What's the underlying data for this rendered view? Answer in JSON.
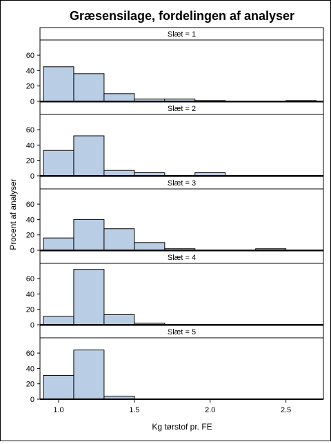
{
  "chart_data": {
    "type": "bar",
    "title": "Græsensilage, fordelingen af analyser",
    "xlabel": "Kg tørstof pr. FE",
    "ylabel": "Procent af analyser",
    "xlim": [
      0.9,
      2.72
    ],
    "ylim": [
      0,
      78
    ],
    "bin_width": 0.2,
    "x_ticks": [
      1.0,
      1.5,
      2.0,
      2.5
    ],
    "x_tick_labels": [
      "1.0",
      "1.5",
      "2.0",
      "2.5"
    ],
    "y_ticks": [
      0,
      20,
      40,
      60
    ],
    "y_tick_labels": [
      "0",
      "20",
      "40",
      "60"
    ],
    "grid": false,
    "bar_color": "#b9cde5",
    "panels": [
      {
        "label": "Slæt = 1",
        "bins": [
          {
            "x0": 0.9,
            "x1": 1.1,
            "value": 45
          },
          {
            "x0": 1.1,
            "x1": 1.3,
            "value": 36
          },
          {
            "x0": 1.3,
            "x1": 1.5,
            "value": 10
          },
          {
            "x0": 1.5,
            "x1": 1.7,
            "value": 3
          },
          {
            "x0": 1.7,
            "x1": 1.9,
            "value": 3
          },
          {
            "x0": 1.9,
            "x1": 2.1,
            "value": 1
          },
          {
            "x0": 2.5,
            "x1": 2.7,
            "value": 1
          }
        ]
      },
      {
        "label": "Slæt = 2",
        "bins": [
          {
            "x0": 0.9,
            "x1": 1.1,
            "value": 33
          },
          {
            "x0": 1.1,
            "x1": 1.3,
            "value": 52
          },
          {
            "x0": 1.3,
            "x1": 1.5,
            "value": 7
          },
          {
            "x0": 1.5,
            "x1": 1.7,
            "value": 4
          },
          {
            "x0": 1.9,
            "x1": 2.1,
            "value": 4
          }
        ]
      },
      {
        "label": "Slæt = 3",
        "bins": [
          {
            "x0": 0.9,
            "x1": 1.1,
            "value": 16
          },
          {
            "x0": 1.1,
            "x1": 1.3,
            "value": 40
          },
          {
            "x0": 1.3,
            "x1": 1.5,
            "value": 28
          },
          {
            "x0": 1.5,
            "x1": 1.7,
            "value": 10
          },
          {
            "x0": 1.7,
            "x1": 1.9,
            "value": 2
          },
          {
            "x0": 2.3,
            "x1": 2.5,
            "value": 2
          }
        ]
      },
      {
        "label": "Slæt = 4",
        "bins": [
          {
            "x0": 0.9,
            "x1": 1.1,
            "value": 11
          },
          {
            "x0": 1.1,
            "x1": 1.3,
            "value": 72
          },
          {
            "x0": 1.3,
            "x1": 1.5,
            "value": 13
          },
          {
            "x0": 1.5,
            "x1": 1.7,
            "value": 2
          }
        ]
      },
      {
        "label": "Slæt = 5",
        "bins": [
          {
            "x0": 0.9,
            "x1": 1.1,
            "value": 31
          },
          {
            "x0": 1.1,
            "x1": 1.3,
            "value": 64
          },
          {
            "x0": 1.3,
            "x1": 1.5,
            "value": 4
          }
        ]
      }
    ]
  }
}
